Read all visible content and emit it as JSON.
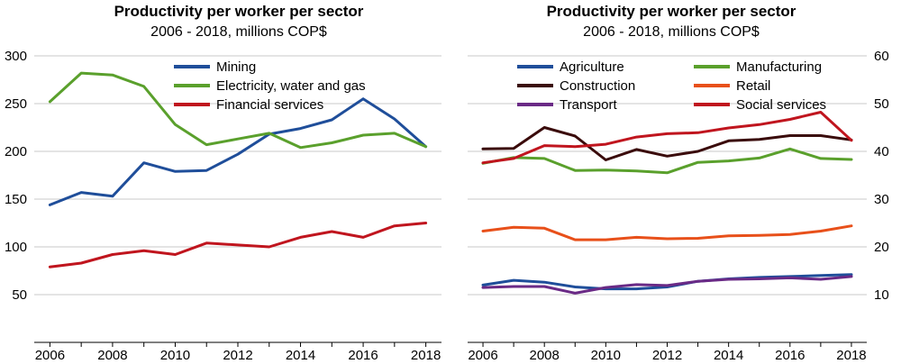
{
  "chart_data": [
    {
      "type": "line",
      "title": "Productivity per worker per sector",
      "subtitle": "2006 - 2018, millions COP$",
      "x": [
        2006,
        2007,
        2008,
        2009,
        2010,
        2011,
        2012,
        2013,
        2014,
        2015,
        2016,
        2017,
        2018
      ],
      "x_ticks": [
        2006,
        2008,
        2010,
        2012,
        2014,
        2016,
        2018
      ],
      "xlim": [
        2005.5,
        2018.5
      ],
      "ylim": [
        0,
        300
      ],
      "y_ticks": [
        50,
        100,
        150,
        200,
        250,
        300
      ],
      "y_axis_side": "left",
      "grid": true,
      "legend_placement": "top-center",
      "series": [
        {
          "name": "Mining",
          "color": "#1f4e9a",
          "values": [
            144,
            157,
            153,
            188,
            179,
            180,
            197,
            218,
            224,
            233,
            255,
            234,
            205
          ]
        },
        {
          "name": "Electricity, water and gas",
          "color": "#5aa02c",
          "values": [
            252,
            282,
            280,
            268,
            228,
            207,
            213,
            219,
            204,
            209,
            217,
            219,
            205
          ]
        },
        {
          "name": "Financial services",
          "color": "#c0151e",
          "values": [
            79,
            83,
            92,
            96,
            92,
            104,
            102,
            100,
            110,
            116,
            110,
            122,
            125
          ]
        }
      ]
    },
    {
      "type": "line",
      "title": "Productivity per worker per sector",
      "subtitle": "2006 - 2018, millions COP$",
      "x": [
        2006,
        2007,
        2008,
        2009,
        2010,
        2011,
        2012,
        2013,
        2014,
        2015,
        2016,
        2017,
        2018
      ],
      "x_ticks": [
        2006,
        2008,
        2010,
        2012,
        2014,
        2016,
        2018
      ],
      "xlim": [
        2005.5,
        2018.5
      ],
      "ylim": [
        0,
        60
      ],
      "y_ticks": [
        10,
        20,
        30,
        40,
        50,
        60
      ],
      "y_axis_side": "right",
      "grid": true,
      "legend_placement": "top-center",
      "series": [
        {
          "name": "Agriculture",
          "color": "#1f4e9a",
          "values": [
            12,
            13,
            12.6,
            11.6,
            11.2,
            11.2,
            11.6,
            12.8,
            13.3,
            13.6,
            13.8,
            14,
            14.2
          ]
        },
        {
          "name": "Manufacturing",
          "color": "#5aa02c",
          "values": [
            37.5,
            38.7,
            38.5,
            36,
            36.1,
            35.9,
            35.5,
            37.7,
            38,
            38.6,
            40.5,
            38.5,
            38.3
          ]
        },
        {
          "name": "Construction",
          "color": "#3a0b0b",
          "values": [
            40.5,
            40.6,
            45,
            43.2,
            38.2,
            40.4,
            39,
            40,
            42.2,
            42.5,
            43.3,
            43.3,
            42.4
          ]
        },
        {
          "name": "Retail",
          "color": "#e8501a",
          "values": [
            23.3,
            24.1,
            23.9,
            21.5,
            21.5,
            22,
            21.7,
            21.8,
            22.3,
            22.4,
            22.6,
            23.3,
            24.4
          ]
        },
        {
          "name": "Transport",
          "color": "#6a2a86",
          "values": [
            11.5,
            11.7,
            11.7,
            10.3,
            11.5,
            12.1,
            11.9,
            12.8,
            13.2,
            13.3,
            13.5,
            13.2,
            13.8
          ]
        },
        {
          "name": "Social services",
          "color": "#c0151e",
          "values": [
            37.6,
            38.5,
            41.2,
            41,
            41.5,
            43,
            43.7,
            43.9,
            44.9,
            45.6,
            46.7,
            48.2,
            42.3
          ]
        }
      ]
    }
  ]
}
